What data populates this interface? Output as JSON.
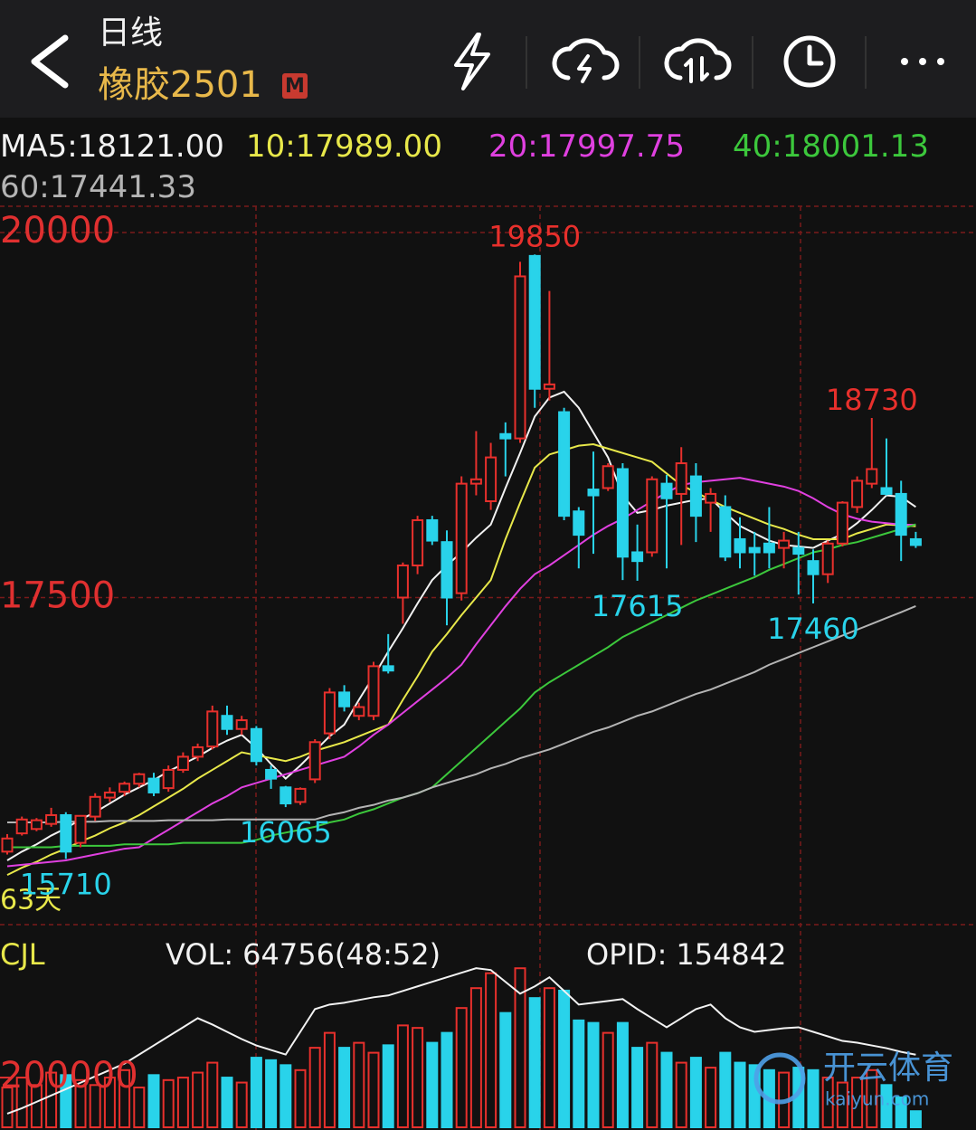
{
  "header": {
    "period": "日线",
    "symbol": "橡胶2501",
    "badge": "M"
  },
  "watermark": {
    "brand": "开云体育",
    "site": "kaiyun.com"
  },
  "chart_data": [
    {
      "type": "candlestick",
      "up_color": "#e8302c",
      "down_color": "#29d3ea",
      "ylim": [
        15260,
        20180
      ],
      "yticks": [
        17500,
        20000
      ],
      "grid": true,
      "period_label": "63天",
      "extremes": [
        19850,
        18730,
        17615,
        17460,
        16065,
        15710
      ],
      "open": [
        15760,
        15885,
        15915,
        15950,
        16010,
        15820,
        16000,
        16130,
        16170,
        16225,
        16260,
        16195,
        16320,
        16410,
        16480,
        16690,
        16600,
        16600,
        16320,
        16200,
        16100,
        16255,
        16570,
        16850,
        16690,
        16690,
        17030,
        17500,
        17720,
        18030,
        17880,
        17530,
        18280,
        18160,
        18620,
        18590,
        19840,
        18930,
        18770,
        18090,
        18240,
        18250,
        18380,
        17810,
        17810,
        18280,
        18210,
        18330,
        18150,
        18120,
        17900,
        17840,
        17870,
        17840,
        17840,
        17750,
        17660,
        17870,
        18120,
        18280,
        18250,
        18210,
        17900
      ],
      "high": [
        15880,
        16000,
        15990,
        16060,
        16030,
        16010,
        16160,
        16200,
        16240,
        16300,
        16300,
        16350,
        16440,
        16500,
        16760,
        16760,
        16690,
        16620,
        16350,
        16210,
        16200,
        16530,
        16880,
        16900,
        16780,
        17060,
        17250,
        17740,
        18060,
        18060,
        17960,
        18330,
        18640,
        18560,
        18700,
        19800,
        19850,
        19600,
        18800,
        18120,
        18500,
        18420,
        18420,
        18000,
        18330,
        18340,
        18530,
        18420,
        18250,
        18200,
        18050,
        17950,
        18120,
        17950,
        17950,
        17830,
        17890,
        18160,
        18330,
        18730,
        18590,
        18300,
        17950
      ],
      "low": [
        15740,
        15870,
        15900,
        15930,
        15710,
        15790,
        15970,
        16100,
        16140,
        16200,
        16140,
        16170,
        16300,
        16380,
        16460,
        16560,
        16560,
        16350,
        16190,
        16065,
        16080,
        16230,
        16530,
        16720,
        16660,
        16660,
        16980,
        17320,
        17660,
        17860,
        17310,
        17480,
        18200,
        18100,
        18330,
        18560,
        18800,
        18850,
        18030,
        17700,
        17800,
        18230,
        17620,
        17615,
        17780,
        17700,
        17860,
        17880,
        17950,
        17750,
        17700,
        17650,
        17700,
        17700,
        17520,
        17460,
        17600,
        17850,
        18080,
        18250,
        18200,
        17750,
        17840
      ],
      "close": [
        15850,
        15980,
        15975,
        16010,
        15760,
        16005,
        16135,
        16165,
        16225,
        16290,
        16165,
        16320,
        16410,
        16475,
        16720,
        16600,
        16660,
        16380,
        16260,
        16090,
        16190,
        16510,
        16850,
        16755,
        16750,
        17030,
        17000,
        17720,
        18030,
        17890,
        17500,
        18280,
        18310,
        18460,
        18590,
        19700,
        18930,
        18960,
        18060,
        17930,
        18200,
        18400,
        17780,
        17750,
        18310,
        18180,
        18420,
        18060,
        18210,
        17780,
        17810,
        17810,
        17810,
        17890,
        17800,
        17660,
        17870,
        18150,
        18300,
        18380,
        18210,
        17930,
        17860
      ],
      "series": [
        {
          "name": "MA5:",
          "color": "#f2f2f2",
          "values": [
            15700,
            15760,
            15810,
            15870,
            15920,
            15980,
            16030,
            16090,
            16150,
            16200,
            16250,
            16310,
            16360,
            16410,
            16470,
            16520,
            16560,
            16470,
            16360,
            16260,
            16350,
            16450,
            16550,
            16630,
            16800,
            16960,
            17130,
            17290,
            17460,
            17620,
            17720,
            17810,
            17910,
            18000,
            18250,
            18490,
            18740,
            18870,
            18910,
            18800,
            18630,
            18460,
            18200,
            18080,
            18100,
            18130,
            18150,
            18170,
            18180,
            18080,
            17990,
            17940,
            17890,
            17860,
            17850,
            17840,
            17890,
            17935,
            18010,
            18100,
            18200,
            18190,
            18121
          ],
          "value_labels": [
            null,
            null,
            null,
            null,
            null,
            null,
            null,
            null,
            null,
            null,
            null,
            null,
            null,
            null,
            null,
            null,
            null,
            null,
            null,
            null,
            null,
            null,
            null,
            null,
            null,
            null,
            null,
            null,
            null,
            null,
            null,
            null,
            null,
            null,
            null,
            null,
            null,
            null,
            null,
            null,
            null,
            null,
            null,
            null,
            null,
            null,
            null,
            null,
            null,
            null,
            null,
            null,
            null,
            null,
            null,
            null,
            null,
            null,
            null,
            null,
            null,
            null,
            "18121.00"
          ]
        },
        {
          "name": "10:",
          "color": "#e8e84a",
          "values": [
            15600,
            15650,
            15690,
            15740,
            15780,
            15830,
            15870,
            15920,
            15960,
            16010,
            16070,
            16130,
            16190,
            16260,
            16320,
            16380,
            16440,
            16420,
            16400,
            16380,
            16410,
            16450,
            16480,
            16510,
            16550,
            16590,
            16630,
            16800,
            16960,
            17130,
            17250,
            17380,
            17500,
            17620,
            17900,
            18150,
            18390,
            18480,
            18510,
            18540,
            18550,
            18520,
            18490,
            18460,
            18430,
            18350,
            18270,
            18220,
            18170,
            18120,
            18080,
            18040,
            18000,
            17970,
            17930,
            17900,
            17900,
            17900,
            17940,
            17970,
            18000,
            17995,
            17989
          ],
          "value_labels": [
            null,
            null,
            null,
            null,
            null,
            null,
            null,
            null,
            null,
            null,
            null,
            null,
            null,
            null,
            null,
            null,
            null,
            null,
            null,
            null,
            null,
            null,
            null,
            null,
            null,
            null,
            null,
            null,
            null,
            null,
            null,
            null,
            null,
            null,
            null,
            null,
            null,
            null,
            null,
            null,
            null,
            null,
            null,
            null,
            null,
            null,
            null,
            null,
            null,
            null,
            null,
            null,
            null,
            null,
            null,
            null,
            null,
            null,
            null,
            null,
            null,
            null,
            "17989.00"
          ]
        },
        {
          "name": "20:",
          "color": "#e040e0",
          "values": [
            15660,
            15670,
            15680,
            15690,
            15700,
            15720,
            15740,
            15760,
            15780,
            15790,
            15850,
            15910,
            15970,
            16030,
            16090,
            16140,
            16200,
            16230,
            16260,
            16290,
            16320,
            16350,
            16380,
            16410,
            16480,
            16560,
            16630,
            16710,
            16790,
            16870,
            16950,
            17040,
            17180,
            17310,
            17440,
            17560,
            17660,
            17720,
            17790,
            17860,
            17930,
            17990,
            18040,
            18100,
            18160,
            18220,
            18270,
            18290,
            18300,
            18310,
            18320,
            18300,
            18280,
            18260,
            18230,
            18180,
            18120,
            18070,
            18040,
            18020,
            18010,
            18000,
            17997.75
          ]
        },
        {
          "name": "40:",
          "color": "#3cc83c",
          "values": [
            15790,
            15790,
            15790,
            15790,
            15800,
            15800,
            15800,
            15800,
            15810,
            15810,
            15810,
            15810,
            15820,
            15820,
            15820,
            15820,
            15820,
            15840,
            15870,
            15890,
            15910,
            15930,
            15960,
            15980,
            16020,
            16050,
            16090,
            16130,
            16160,
            16200,
            16290,
            16380,
            16470,
            16560,
            16650,
            16740,
            16850,
            16920,
            16980,
            17040,
            17100,
            17160,
            17230,
            17280,
            17330,
            17380,
            17430,
            17480,
            17520,
            17560,
            17600,
            17640,
            17690,
            17730,
            17770,
            17810,
            17830,
            17860,
            17880,
            17910,
            17940,
            17970,
            18001.13
          ]
        },
        {
          "name": "60:",
          "color": "#b4b4b4",
          "values": [
            15960,
            15960,
            15960,
            15960,
            15965,
            15965,
            15965,
            15970,
            15970,
            15970,
            15970,
            15975,
            15975,
            15975,
            15975,
            15980,
            15980,
            15980,
            15980,
            15980,
            15980,
            15980,
            16010,
            16030,
            16060,
            16080,
            16110,
            16130,
            16160,
            16200,
            16230,
            16260,
            16290,
            16330,
            16360,
            16400,
            16430,
            16460,
            16500,
            16540,
            16580,
            16610,
            16650,
            16690,
            16720,
            16760,
            16800,
            16840,
            16870,
            16910,
            16950,
            16990,
            17040,
            17080,
            17120,
            17160,
            17200,
            17240,
            17280,
            17320,
            17360,
            17400,
            17441.33
          ]
        }
      ]
    },
    {
      "type": "bar",
      "title": "CJL",
      "up_color": "#e8302c",
      "down_color": "#29d3ea",
      "ylim": [
        0,
        750000
      ],
      "yticks": [
        200000
      ],
      "y2lim": [
        75000,
        280000
      ],
      "series": [
        {
          "name": "VOL:",
          "color": "#f2f2f2",
          "values": [
            160000,
            200000,
            170000,
            220000,
            210000,
            190000,
            170000,
            200000,
            230000,
            160000,
            210000,
            190000,
            200000,
            220000,
            260000,
            200000,
            180000,
            280000,
            270000,
            250000,
            230000,
            320000,
            380000,
            320000,
            340000,
            300000,
            330000,
            410000,
            400000,
            340000,
            380000,
            480000,
            560000,
            620000,
            460000,
            640000,
            520000,
            560000,
            550000,
            430000,
            420000,
            380000,
            420000,
            320000,
            340000,
            300000,
            260000,
            280000,
            240000,
            300000,
            260000,
            250000,
            230000,
            220000,
            240000,
            230000,
            200000,
            180000,
            200000,
            230000,
            170000,
            120000,
            64756
          ],
          "value_labels": [
            null,
            null,
            null,
            null,
            null,
            null,
            null,
            null,
            null,
            null,
            null,
            null,
            null,
            null,
            null,
            null,
            null,
            null,
            null,
            null,
            null,
            null,
            null,
            null,
            null,
            null,
            null,
            null,
            null,
            null,
            null,
            null,
            null,
            null,
            null,
            null,
            null,
            null,
            null,
            null,
            null,
            null,
            null,
            null,
            null,
            null,
            null,
            null,
            null,
            null,
            null,
            null,
            null,
            null,
            null,
            null,
            null,
            null,
            null,
            null,
            null,
            null,
            "64756(48:52)"
          ]
        },
        {
          "name": "OPID:",
          "color": "#f2f2f2",
          "axis": "y2",
          "values": [
            90000,
            96000,
            103000,
            110000,
            117000,
            124000,
            131000,
            138000,
            145000,
            155000,
            165000,
            175000,
            185000,
            195000,
            188000,
            180000,
            172000,
            165000,
            160000,
            155000,
            180000,
            205000,
            210000,
            212000,
            215000,
            218000,
            220000,
            225000,
            230000,
            235000,
            240000,
            245000,
            250000,
            248000,
            235000,
            222000,
            230000,
            240000,
            225000,
            210000,
            212000,
            214000,
            216000,
            205000,
            195000,
            185000,
            195000,
            205000,
            210000,
            195000,
            185000,
            180000,
            182000,
            184000,
            185000,
            180000,
            175000,
            170000,
            168000,
            165000,
            162000,
            158000,
            154842
          ]
        }
      ]
    }
  ]
}
